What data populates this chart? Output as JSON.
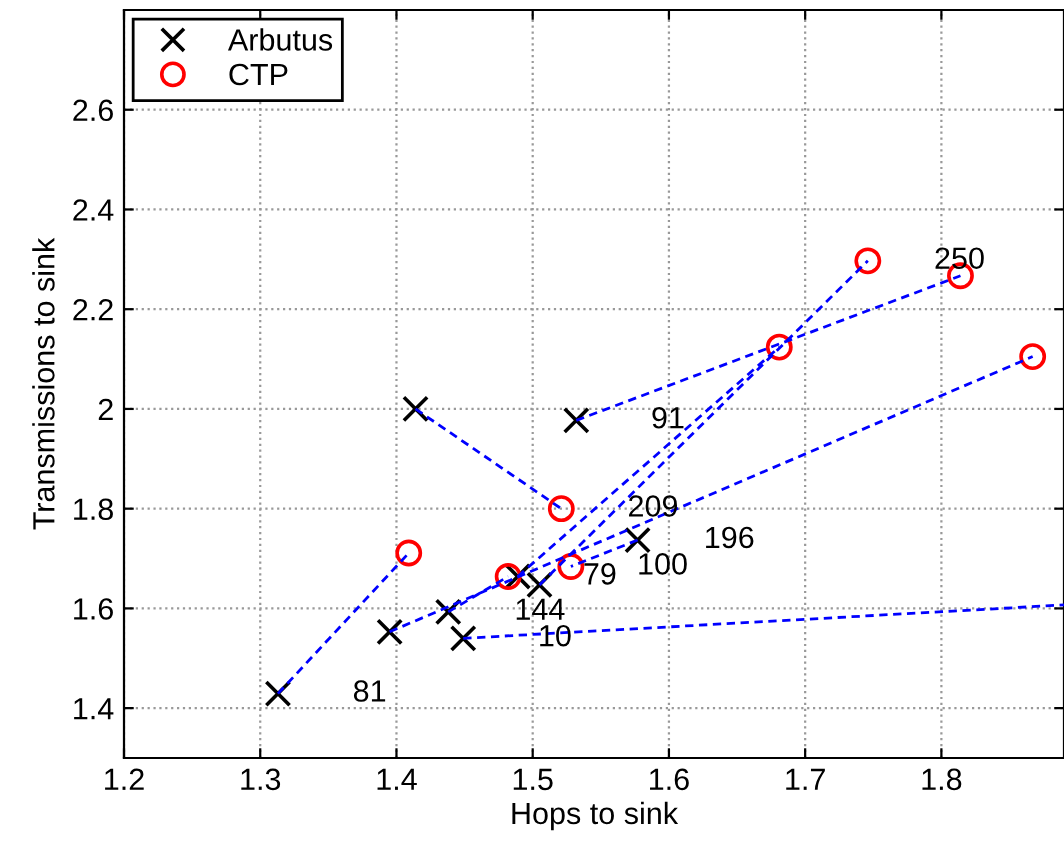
{
  "chart_data": {
    "type": "scatter",
    "xlabel": "Hops to sink",
    "ylabel": "Transmissions to sink",
    "xlim": [
      1.2,
      1.89
    ],
    "ylim": [
      1.3,
      2.8
    ],
    "xticks": [
      1.2,
      1.3,
      1.4,
      1.5,
      1.6,
      1.7,
      1.8
    ],
    "yticks": [
      1.4,
      1.6,
      1.8,
      2,
      2.2,
      2.4,
      2.6
    ],
    "grid": true,
    "legend": "top left",
    "series": [
      {
        "type": "line",
        "color": "#0000ff",
        "line_style": "dashed",
        "marker": "none",
        "x": [
          1.313,
          1.409
        ],
        "values": [
          1.429,
          1.711
        ]
      },
      {
        "type": "line",
        "color": "#0000ff",
        "line_style": "dashed",
        "marker": "none",
        "x": [
          1.414,
          1.521
        ],
        "values": [
          2.0,
          1.8
        ]
      },
      {
        "type": "line",
        "color": "#0000ff",
        "line_style": "dashed",
        "marker": "none",
        "x": [
          1.532,
          1.814
        ],
        "values": [
          1.977,
          2.267
        ]
      },
      {
        "type": "line",
        "color": "#0000ff",
        "line_style": "dashed",
        "marker": "none",
        "x": [
          1.395,
          1.867
        ],
        "values": [
          1.553,
          2.105
        ]
      },
      {
        "type": "line",
        "color": "#0000ff",
        "line_style": "dashed",
        "marker": "none",
        "x": [
          1.505,
          1.746
        ],
        "values": [
          1.647,
          2.297
        ]
      },
      {
        "type": "line",
        "color": "#0000ff",
        "line_style": "dashed",
        "marker": "none",
        "x": [
          1.489,
          1.681
        ],
        "values": [
          1.664,
          2.124
        ]
      },
      {
        "type": "line",
        "color": "#0000ff",
        "line_style": "dashed",
        "marker": "none",
        "x": [
          1.438,
          1.482
        ],
        "values": [
          1.593,
          1.664
        ]
      },
      {
        "type": "line",
        "color": "#0000ff",
        "line_style": "dashed",
        "marker": "none",
        "x": [
          1.577,
          1.528
        ],
        "values": [
          1.737,
          1.684
        ]
      },
      {
        "type": "line",
        "color": "#0000ff",
        "line_style": "dashed",
        "marker": "none",
        "x": [
          1.449,
          1.89
        ],
        "values": [
          1.54,
          1.607
        ]
      },
      {
        "name": "Arbutus",
        "color": "#000000",
        "marker": "cross",
        "x": [
          1.313,
          1.395,
          1.414,
          1.438,
          1.449,
          1.489,
          1.505,
          1.532,
          1.577
        ],
        "values": [
          1.429,
          1.553,
          2.0,
          1.593,
          1.54,
          1.664,
          1.647,
          1.977,
          1.737
        ]
      },
      {
        "name": "CTP",
        "color": "#ff0000",
        "marker": "circle",
        "x": [
          1.409,
          1.482,
          1.521,
          1.528,
          1.681,
          1.746,
          1.814,
          1.867
        ],
        "values": [
          1.711,
          1.664,
          1.8,
          1.684,
          2.124,
          2.297,
          2.267,
          2.105
        ]
      }
    ],
    "annotations": [
      {
        "text": "81",
        "x": 1.313,
        "y": 1.429
      },
      {
        "text": "10",
        "x": 1.449,
        "y": 1.54
      },
      {
        "text": "144",
        "x": 1.438,
        "y": 1.593
      },
      {
        "text": "79",
        "x": 1.482,
        "y": 1.664
      },
      {
        "text": "100",
        "x": 1.528,
        "y": 1.684
      },
      {
        "text": "209",
        "x": 1.521,
        "y": 1.8
      },
      {
        "text": "196",
        "x": 1.577,
        "y": 1.737
      },
      {
        "text": "91",
        "x": 1.532,
        "y": 1.977
      },
      {
        "text": "250",
        "x": 1.746,
        "y": 2.297
      }
    ]
  }
}
